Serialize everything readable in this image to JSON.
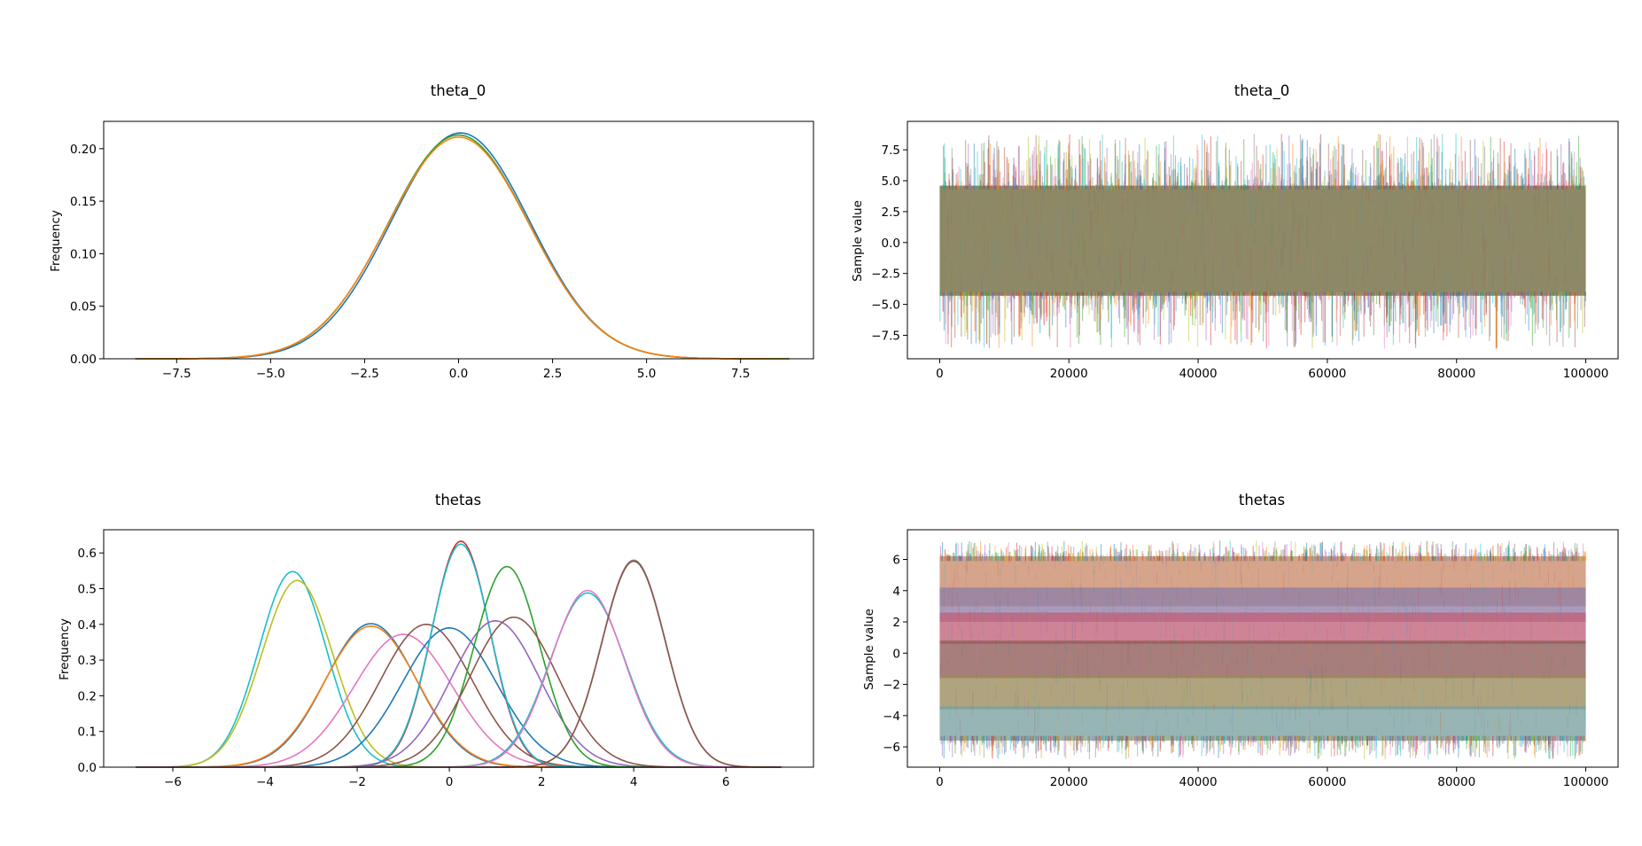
{
  "chart_data": [
    {
      "id": "theta0_density",
      "type": "line",
      "title": "theta_0",
      "xlabel": "",
      "ylabel": "Frequency",
      "xlim": [
        -9.44,
        9.44
      ],
      "ylim": [
        0,
        0.226
      ],
      "xticks": [
        -7.5,
        -5.0,
        -2.5,
        0.0,
        2.5,
        5.0,
        7.5
      ],
      "xtick_labels": [
        "−7.5",
        "−5.0",
        "−2.5",
        "0.0",
        "2.5",
        "5.0",
        "7.5"
      ],
      "yticks": [
        0.0,
        0.05,
        0.1,
        0.15,
        0.2
      ],
      "ytick_labels": [
        "0.00",
        "0.05",
        "0.10",
        "0.15",
        "0.20"
      ],
      "grid": false,
      "legend": "none",
      "x_range": [
        -8.6,
        8.8
      ],
      "series": [
        {
          "mean": 0.05,
          "sd": 1.85,
          "peak": 0.215,
          "color": "#1f77b4"
        },
        {
          "mean": 0.0,
          "sd": 1.87,
          "peak": 0.213,
          "color": "#2ca02c"
        },
        {
          "mean": 0.0,
          "sd": 1.88,
          "peak": 0.211,
          "color": "#ff7f0e"
        }
      ]
    },
    {
      "id": "theta0_trace",
      "type": "line",
      "title": "theta_0",
      "xlabel": "",
      "ylabel": "Sample value",
      "xlim": [
        -5000,
        105000
      ],
      "ylim": [
        -9.4,
        9.8
      ],
      "xticks": [
        0,
        20000,
        40000,
        60000,
        80000,
        100000
      ],
      "xtick_labels": [
        "0",
        "20000",
        "40000",
        "60000",
        "80000",
        "100000"
      ],
      "yticks": [
        -7.5,
        -5.0,
        -2.5,
        0.0,
        2.5,
        5.0,
        7.5
      ],
      "ytick_labels": [
        "−7.5",
        "−5.0",
        "−2.5",
        "0.0",
        "2.5",
        "5.0",
        "7.5"
      ],
      "grid": false,
      "legend": "none",
      "n_samples": 100000,
      "band": {
        "center": 0.0,
        "core_low": -4.3,
        "core_high": 4.6,
        "spike_low": -8.6,
        "spike_high": 8.8,
        "fill": "#8d8866"
      },
      "series_colors": [
        "#1f77b4",
        "#ff7f0e",
        "#2ca02c",
        "#d62728",
        "#9467bd",
        "#8c564b",
        "#e377c2",
        "#7f7f7f",
        "#bcbd22",
        "#17becf"
      ]
    },
    {
      "id": "thetas_density",
      "type": "line",
      "title": "thetas",
      "xlabel": "",
      "ylabel": "Frequency",
      "xlim": [
        -7.5,
        7.9
      ],
      "ylim": [
        0,
        0.665
      ],
      "xticks": [
        -6,
        -4,
        -2,
        0,
        2,
        4,
        6
      ],
      "xtick_labels": [
        "−6",
        "−4",
        "−2",
        "0",
        "2",
        "4",
        "6"
      ],
      "yticks": [
        0.0,
        0.1,
        0.2,
        0.3,
        0.4,
        0.5,
        0.6
      ],
      "ytick_labels": [
        "0.0",
        "0.1",
        "0.2",
        "0.3",
        "0.4",
        "0.5",
        "0.6"
      ],
      "grid": false,
      "legend": "none",
      "x_range": [
        -6.8,
        7.2
      ],
      "series": [
        {
          "mean": -3.4,
          "sd": 0.73,
          "peak": 0.548,
          "color": "#17becf"
        },
        {
          "mean": -3.3,
          "sd": 0.77,
          "peak": 0.523,
          "color": "#bcbd22"
        },
        {
          "mean": -1.7,
          "sd": 0.99,
          "peak": 0.402,
          "color": "#1f77b4"
        },
        {
          "mean": -1.7,
          "sd": 1.01,
          "peak": 0.395,
          "color": "#ff7f0e"
        },
        {
          "mean": -1.0,
          "sd": 1.07,
          "peak": 0.372,
          "color": "#e377c2"
        },
        {
          "mean": -0.5,
          "sd": 1.0,
          "peak": 0.4,
          "color": "#8c564b"
        },
        {
          "mean": 0.0,
          "sd": 1.02,
          "peak": 0.39,
          "color": "#1f77b4"
        },
        {
          "mean": 0.25,
          "sd": 0.63,
          "peak": 0.633,
          "color": "#d62728"
        },
        {
          "mean": 0.25,
          "sd": 0.64,
          "peak": 0.625,
          "color": "#17becf"
        },
        {
          "mean": 1.0,
          "sd": 0.96,
          "peak": 0.41,
          "color": "#9467bd"
        },
        {
          "mean": 1.25,
          "sd": 0.71,
          "peak": 0.562,
          "color": "#2ca02c"
        },
        {
          "mean": 1.4,
          "sd": 0.95,
          "peak": 0.42,
          "color": "#8c564b"
        },
        {
          "mean": 3.0,
          "sd": 0.82,
          "peak": 0.488,
          "color": "#17becf"
        },
        {
          "mean": 3.0,
          "sd": 0.8,
          "peak": 0.495,
          "color": "#e377c2"
        },
        {
          "mean": 4.0,
          "sd": 0.69,
          "peak": 0.58,
          "color": "#7f7f7f"
        },
        {
          "mean": 4.0,
          "sd": 0.69,
          "peak": 0.577,
          "color": "#8c564b"
        }
      ]
    },
    {
      "id": "thetas_trace",
      "type": "line",
      "title": "thetas",
      "xlabel": "",
      "ylabel": "Sample value",
      "xlim": [
        -5000,
        105000
      ],
      "ylim": [
        -7.3,
        7.9
      ],
      "xticks": [
        0,
        20000,
        40000,
        60000,
        80000,
        100000
      ],
      "xtick_labels": [
        "0",
        "20000",
        "40000",
        "60000",
        "80000",
        "100000"
      ],
      "yticks": [
        -6,
        -4,
        -2,
        0,
        2,
        4,
        6
      ],
      "ytick_labels": [
        "−6",
        "−4",
        "−2",
        "0",
        "2",
        "4",
        "6"
      ],
      "grid": false,
      "legend": "none",
      "n_samples": 100000,
      "bands": [
        {
          "low": 3.0,
          "high": 6.2,
          "color": "#c98a6a"
        },
        {
          "low": 2.0,
          "high": 4.2,
          "color": "#8f7fa8"
        },
        {
          "low": 0.6,
          "high": 2.6,
          "color": "#c0607a"
        },
        {
          "low": -1.6,
          "high": 0.8,
          "color": "#8e5a56"
        },
        {
          "low": -3.6,
          "high": -1.4,
          "color": "#9a8a5a"
        },
        {
          "low": -5.6,
          "high": -3.4,
          "color": "#7aa0a0"
        }
      ],
      "spike_low": -6.8,
      "spike_high": 7.2,
      "series_colors": [
        "#1f77b4",
        "#ff7f0e",
        "#2ca02c",
        "#d62728",
        "#9467bd",
        "#8c564b",
        "#e377c2",
        "#7f7f7f",
        "#bcbd22",
        "#17becf"
      ]
    }
  ]
}
